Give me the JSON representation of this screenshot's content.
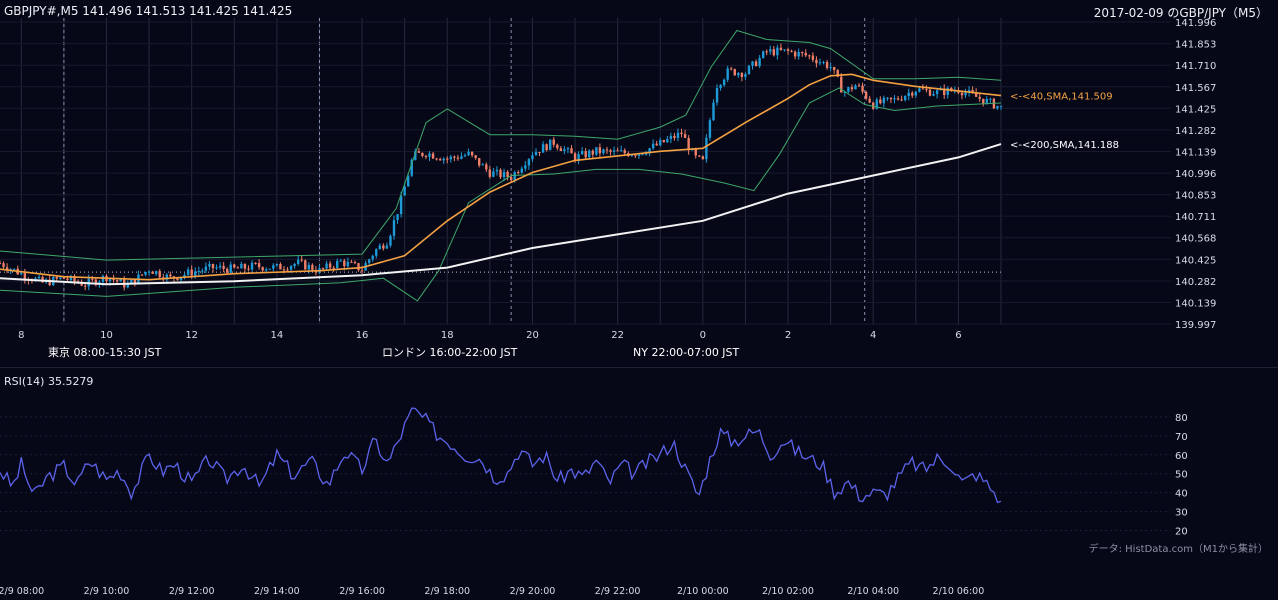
{
  "header": {
    "left": "GBPJPY#,M5 141.496 141.513 141.425 141.425",
    "right": "2017-02-09 のGBP/JPY（M5）"
  },
  "sessions": [
    {
      "label": "東京 08:00-15:30 JST",
      "color": "#25507f"
    },
    {
      "label": "ロンドン 16:00-22:00 JST",
      "color": "#7d5215"
    },
    {
      "label": "NY 22:00-07:00 JST",
      "color": "#246343"
    }
  ],
  "rsi": {
    "label": "RSI(14) 35.5279"
  },
  "source": "データ: HistData.com（M1から集計）",
  "colors": {
    "background": "#060818",
    "up_candle": "#1e9bd7",
    "down_candle": "#f07f68",
    "sma40": "#f5a142",
    "sma200": "#f2f2f2",
    "bollinger": "#3fa86a",
    "rsi_line": "#5c63ea",
    "grid": "#252a3d"
  },
  "chart_data": [
    {
      "type": "candlestick",
      "symbol": "GBPJPY#",
      "timeframe": "M5",
      "last_ohlc": {
        "open": 141.496,
        "high": 141.513,
        "low": 141.425,
        "close": 141.425
      },
      "y_ticks": [
        "141.996",
        "141.853",
        "141.710",
        "141.567",
        "141.425",
        "141.282",
        "141.139",
        "140.996",
        "140.853",
        "140.711",
        "140.568",
        "140.425",
        "140.282",
        "140.139",
        "139.997"
      ],
      "ylim": [
        139.997,
        141.996
      ],
      "x_ticks": [
        "8",
        "10",
        "12",
        "14",
        "16",
        "18",
        "20",
        "22",
        "0",
        "2",
        "4",
        "6"
      ],
      "x_start_hour": 7.5,
      "x_end_hour": 31.0,
      "reference_line": 140.34,
      "closes_hourly": [
        {
          "h": 7.5,
          "c": 140.4
        },
        {
          "h": 8.0,
          "c": 140.33
        },
        {
          "h": 8.5,
          "c": 140.27
        },
        {
          "h": 9.0,
          "c": 140.3
        },
        {
          "h": 9.5,
          "c": 140.26
        },
        {
          "h": 10.0,
          "c": 140.31
        },
        {
          "h": 10.5,
          "c": 140.25
        },
        {
          "h": 11.0,
          "c": 140.36
        },
        {
          "h": 11.5,
          "c": 140.3
        },
        {
          "h": 12.0,
          "c": 140.34
        },
        {
          "h": 12.5,
          "c": 140.37
        },
        {
          "h": 13.0,
          "c": 140.36
        },
        {
          "h": 13.5,
          "c": 140.38
        },
        {
          "h": 14.0,
          "c": 140.37
        },
        {
          "h": 14.5,
          "c": 140.4
        },
        {
          "h": 15.0,
          "c": 140.35
        },
        {
          "h": 15.5,
          "c": 140.41
        },
        {
          "h": 16.0,
          "c": 140.36
        },
        {
          "h": 16.3,
          "c": 140.48
        },
        {
          "h": 16.6,
          "c": 140.55
        },
        {
          "h": 16.9,
          "c": 140.8
        },
        {
          "h": 17.2,
          "c": 141.11
        },
        {
          "h": 17.5,
          "c": 141.13
        },
        {
          "h": 18.0,
          "c": 141.09
        },
        {
          "h": 18.5,
          "c": 141.12
        },
        {
          "h": 19.0,
          "c": 141.0
        },
        {
          "h": 19.5,
          "c": 140.97
        },
        {
          "h": 20.0,
          "c": 141.13
        },
        {
          "h": 20.5,
          "c": 141.2
        },
        {
          "h": 21.0,
          "c": 141.1
        },
        {
          "h": 21.5,
          "c": 141.14
        },
        {
          "h": 22.0,
          "c": 141.13
        },
        {
          "h": 22.5,
          "c": 141.13
        },
        {
          "h": 23.0,
          "c": 141.19
        },
        {
          "h": 23.5,
          "c": 141.26
        },
        {
          "h": 23.8,
          "c": 141.1
        },
        {
          "h": 24.0,
          "c": 141.07
        },
        {
          "h": 24.3,
          "c": 141.57
        },
        {
          "h": 24.6,
          "c": 141.67
        },
        {
          "h": 25.0,
          "c": 141.66
        },
        {
          "h": 25.5,
          "c": 141.8
        },
        {
          "h": 26.0,
          "c": 141.8
        },
        {
          "h": 26.5,
          "c": 141.77
        },
        {
          "h": 27.0,
          "c": 141.7
        },
        {
          "h": 27.3,
          "c": 141.53
        },
        {
          "h": 27.6,
          "c": 141.58
        },
        {
          "h": 28.0,
          "c": 141.45
        },
        {
          "h": 28.5,
          "c": 141.48
        },
        {
          "h": 29.0,
          "c": 141.55
        },
        {
          "h": 29.5,
          "c": 141.53
        },
        {
          "h": 30.0,
          "c": 141.55
        },
        {
          "h": 30.5,
          "c": 141.49
        },
        {
          "h": 31.0,
          "c": 141.43
        }
      ],
      "indicators": [
        {
          "name": "<-<40,SMA,141.509",
          "value": 141.509,
          "path": [
            {
              "h": 7.5,
              "v": 140.36
            },
            {
              "h": 9.0,
              "v": 140.31
            },
            {
              "h": 11.0,
              "v": 140.29
            },
            {
              "h": 13.0,
              "v": 140.33
            },
            {
              "h": 15.0,
              "v": 140.35
            },
            {
              "h": 16.0,
              "v": 140.37
            },
            {
              "h": 17.0,
              "v": 140.45
            },
            {
              "h": 18.0,
              "v": 140.68
            },
            {
              "h": 19.0,
              "v": 140.87
            },
            {
              "h": 20.0,
              "v": 141.0
            },
            {
              "h": 21.0,
              "v": 141.08
            },
            {
              "h": 22.0,
              "v": 141.11
            },
            {
              "h": 23.0,
              "v": 141.14
            },
            {
              "h": 24.0,
              "v": 141.16
            },
            {
              "h": 25.0,
              "v": 141.33
            },
            {
              "h": 26.0,
              "v": 141.49
            },
            {
              "h": 26.5,
              "v": 141.58
            },
            {
              "h": 27.0,
              "v": 141.64
            },
            {
              "h": 27.5,
              "v": 141.65
            },
            {
              "h": 28.0,
              "v": 141.61
            },
            {
              "h": 29.0,
              "v": 141.57
            },
            {
              "h": 30.0,
              "v": 141.54
            },
            {
              "h": 31.0,
              "v": 141.509
            }
          ]
        },
        {
          "name": "<-<200,SMA,141.188",
          "value": 141.188,
          "path": [
            {
              "h": 7.5,
              "v": 140.3
            },
            {
              "h": 10.0,
              "v": 140.26
            },
            {
              "h": 13.0,
              "v": 140.28
            },
            {
              "h": 16.0,
              "v": 140.32
            },
            {
              "h": 18.0,
              "v": 140.37
            },
            {
              "h": 20.0,
              "v": 140.5
            },
            {
              "h": 22.0,
              "v": 140.59
            },
            {
              "h": 24.0,
              "v": 140.68
            },
            {
              "h": 26.0,
              "v": 140.86
            },
            {
              "h": 28.0,
              "v": 140.98
            },
            {
              "h": 30.0,
              "v": 141.1
            },
            {
              "h": 31.0,
              "v": 141.188
            }
          ]
        }
      ],
      "bollinger_upper": [
        {
          "h": 7.5,
          "v": 140.48
        },
        {
          "h": 10.0,
          "v": 140.42
        },
        {
          "h": 13.0,
          "v": 140.44
        },
        {
          "h": 16.0,
          "v": 140.46
        },
        {
          "h": 16.8,
          "v": 140.76
        },
        {
          "h": 17.5,
          "v": 141.33
        },
        {
          "h": 18.0,
          "v": 141.42
        },
        {
          "h": 19.0,
          "v": 141.25
        },
        {
          "h": 20.0,
          "v": 141.25
        },
        {
          "h": 21.0,
          "v": 141.24
        },
        {
          "h": 22.0,
          "v": 141.22
        },
        {
          "h": 23.0,
          "v": 141.3
        },
        {
          "h": 23.6,
          "v": 141.38
        },
        {
          "h": 24.2,
          "v": 141.7
        },
        {
          "h": 24.8,
          "v": 141.94
        },
        {
          "h": 25.5,
          "v": 141.88
        },
        {
          "h": 26.5,
          "v": 141.86
        },
        {
          "h": 27.0,
          "v": 141.82
        },
        {
          "h": 28.0,
          "v": 141.62
        },
        {
          "h": 29.0,
          "v": 141.62
        },
        {
          "h": 30.0,
          "v": 141.63
        },
        {
          "h": 31.0,
          "v": 141.61
        }
      ],
      "bollinger_lower": [
        {
          "h": 7.5,
          "v": 140.22
        },
        {
          "h": 10.0,
          "v": 140.18
        },
        {
          "h": 13.0,
          "v": 140.24
        },
        {
          "h": 15.5,
          "v": 140.27
        },
        {
          "h": 16.5,
          "v": 140.3
        },
        {
          "h": 17.3,
          "v": 140.15
        },
        {
          "h": 17.8,
          "v": 140.35
        },
        {
          "h": 18.5,
          "v": 140.8
        },
        {
          "h": 19.5,
          "v": 140.98
        },
        {
          "h": 20.5,
          "v": 140.99
        },
        {
          "h": 21.5,
          "v": 141.02
        },
        {
          "h": 22.5,
          "v": 141.02
        },
        {
          "h": 23.5,
          "v": 140.99
        },
        {
          "h": 24.0,
          "v": 140.96
        },
        {
          "h": 24.5,
          "v": 140.93
        },
        {
          "h": 25.2,
          "v": 140.88
        },
        {
          "h": 25.8,
          "v": 141.12
        },
        {
          "h": 26.5,
          "v": 141.46
        },
        {
          "h": 27.2,
          "v": 141.56
        },
        {
          "h": 27.8,
          "v": 141.45
        },
        {
          "h": 28.5,
          "v": 141.41
        },
        {
          "h": 29.5,
          "v": 141.44
        },
        {
          "h": 31.0,
          "v": 141.46
        }
      ]
    },
    {
      "type": "line",
      "name": "RSI(14)",
      "last_value": 35.5279,
      "ylim": [
        15,
        90
      ],
      "y_ticks": [
        "80",
        "70",
        "60",
        "50",
        "40",
        "30",
        "20"
      ],
      "x_ticks": [
        "2/9 08:00",
        "2/9 10:00",
        "2/9 12:00",
        "2/9 14:00",
        "2/9 16:00",
        "2/9 18:00",
        "2/9 20:00",
        "2/9 22:00",
        "2/10 00:00",
        "2/10 02:00",
        "2/10 04:00",
        "2/10 06:00"
      ],
      "points": [
        {
          "h": 7.5,
          "v": 52
        },
        {
          "h": 7.8,
          "v": 43
        },
        {
          "h": 8.0,
          "v": 55
        },
        {
          "h": 8.3,
          "v": 38
        },
        {
          "h": 8.6,
          "v": 48
        },
        {
          "h": 9.0,
          "v": 54
        },
        {
          "h": 9.3,
          "v": 44
        },
        {
          "h": 9.6,
          "v": 57
        },
        {
          "h": 10.0,
          "v": 47
        },
        {
          "h": 10.3,
          "v": 52
        },
        {
          "h": 10.6,
          "v": 40
        },
        {
          "h": 11.0,
          "v": 60
        },
        {
          "h": 11.3,
          "v": 51
        },
        {
          "h": 11.6,
          "v": 55
        },
        {
          "h": 12.0,
          "v": 45
        },
        {
          "h": 12.4,
          "v": 58
        },
        {
          "h": 12.8,
          "v": 47
        },
        {
          "h": 13.2,
          "v": 55
        },
        {
          "h": 13.6,
          "v": 43
        },
        {
          "h": 14.0,
          "v": 60
        },
        {
          "h": 14.4,
          "v": 49
        },
        {
          "h": 14.8,
          "v": 57
        },
        {
          "h": 15.2,
          "v": 44
        },
        {
          "h": 15.6,
          "v": 62
        },
        {
          "h": 16.0,
          "v": 52
        },
        {
          "h": 16.3,
          "v": 68
        },
        {
          "h": 16.6,
          "v": 55
        },
        {
          "h": 17.0,
          "v": 75
        },
        {
          "h": 17.2,
          "v": 84
        },
        {
          "h": 17.5,
          "v": 78
        },
        {
          "h": 17.8,
          "v": 70
        },
        {
          "h": 18.1,
          "v": 66
        },
        {
          "h": 18.4,
          "v": 60
        },
        {
          "h": 18.8,
          "v": 58
        },
        {
          "h": 19.1,
          "v": 48
        },
        {
          "h": 19.4,
          "v": 50
        },
        {
          "h": 19.7,
          "v": 63
        },
        {
          "h": 20.0,
          "v": 55
        },
        {
          "h": 20.3,
          "v": 60
        },
        {
          "h": 20.6,
          "v": 46
        },
        {
          "h": 20.9,
          "v": 52
        },
        {
          "h": 21.2,
          "v": 48
        },
        {
          "h": 21.5,
          "v": 57
        },
        {
          "h": 21.8,
          "v": 45
        },
        {
          "h": 22.1,
          "v": 55
        },
        {
          "h": 22.4,
          "v": 50
        },
        {
          "h": 22.7,
          "v": 56
        },
        {
          "h": 23.0,
          "v": 60
        },
        {
          "h": 23.3,
          "v": 67
        },
        {
          "h": 23.6,
          "v": 52
        },
        {
          "h": 23.9,
          "v": 38
        },
        {
          "h": 24.2,
          "v": 60
        },
        {
          "h": 24.4,
          "v": 72
        },
        {
          "h": 24.7,
          "v": 67
        },
        {
          "h": 25.0,
          "v": 70
        },
        {
          "h": 25.3,
          "v": 73
        },
        {
          "h": 25.6,
          "v": 60
        },
        {
          "h": 25.9,
          "v": 68
        },
        {
          "h": 26.2,
          "v": 62
        },
        {
          "h": 26.5,
          "v": 58
        },
        {
          "h": 26.8,
          "v": 55
        },
        {
          "h": 27.1,
          "v": 40
        },
        {
          "h": 27.4,
          "v": 46
        },
        {
          "h": 27.7,
          "v": 38
        },
        {
          "h": 28.0,
          "v": 40
        },
        {
          "h": 28.3,
          "v": 39
        },
        {
          "h": 28.6,
          "v": 48
        },
        {
          "h": 28.9,
          "v": 56
        },
        {
          "h": 29.2,
          "v": 52
        },
        {
          "h": 29.5,
          "v": 58
        },
        {
          "h": 29.8,
          "v": 56
        },
        {
          "h": 30.1,
          "v": 45
        },
        {
          "h": 30.4,
          "v": 50
        },
        {
          "h": 30.7,
          "v": 44
        },
        {
          "h": 31.0,
          "v": 35.5
        }
      ]
    }
  ]
}
